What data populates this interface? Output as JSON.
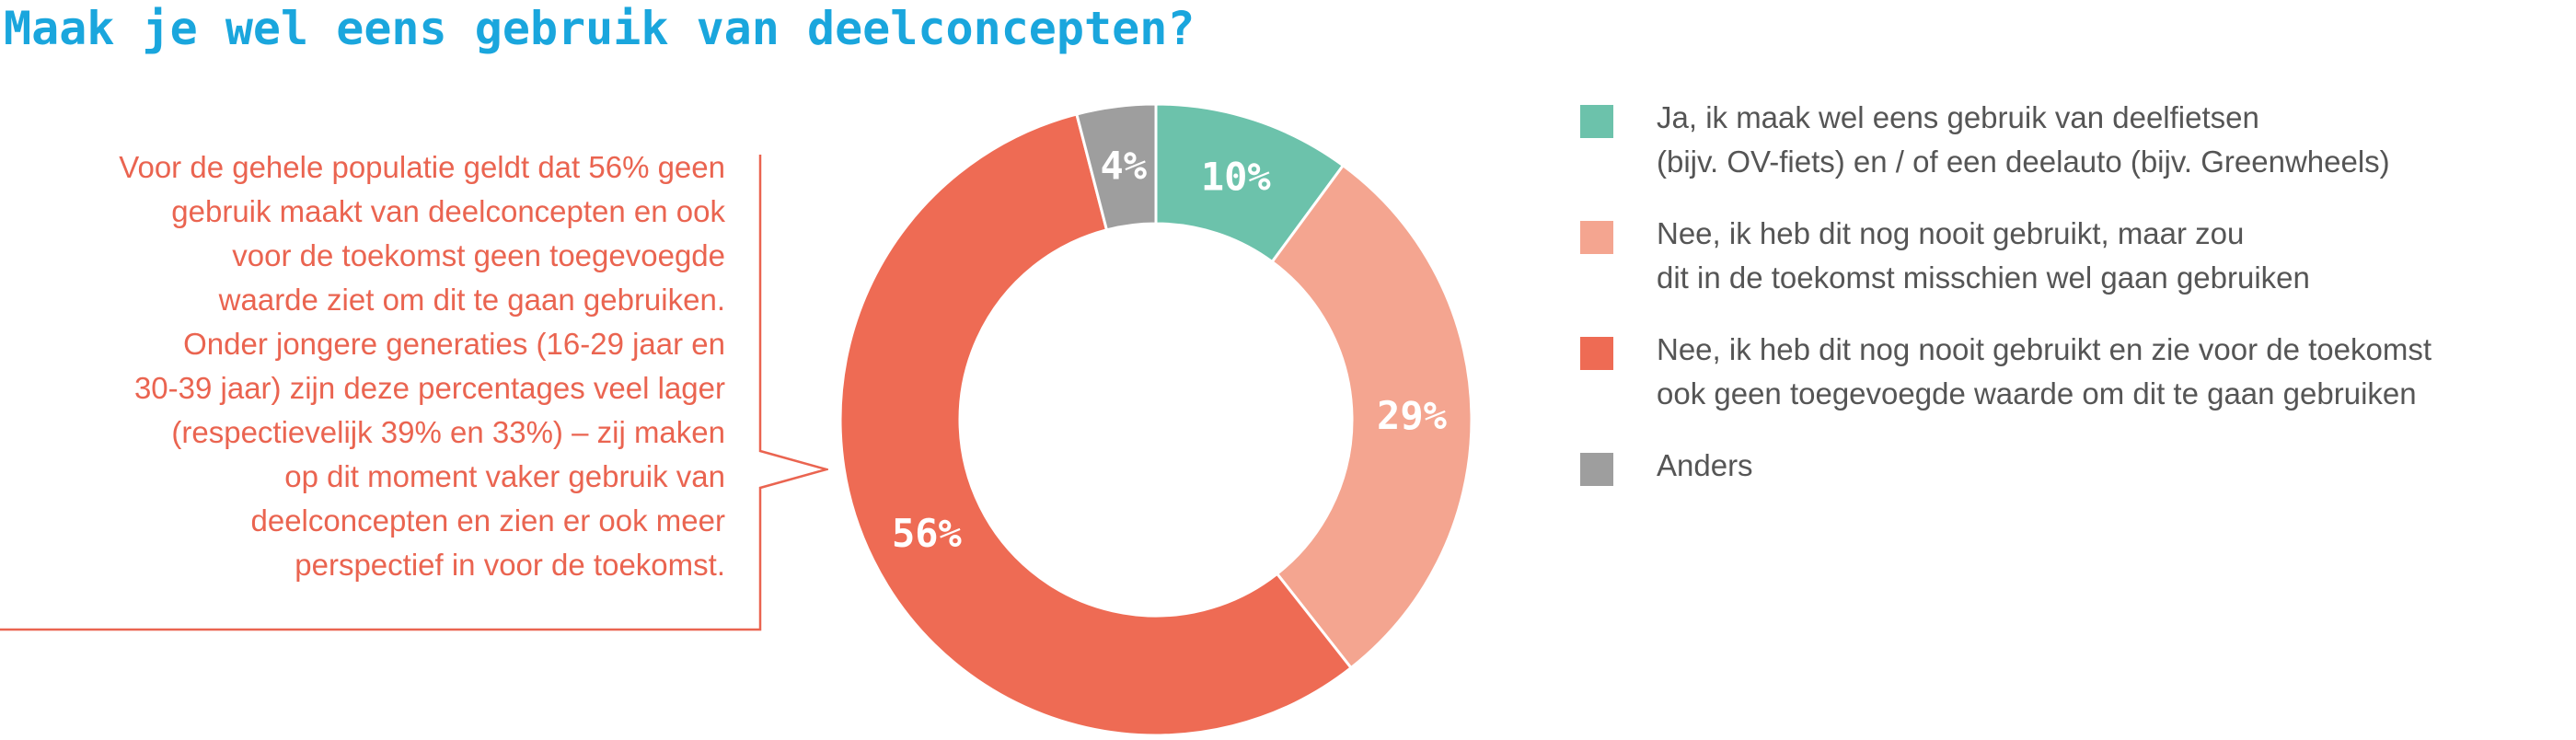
{
  "title": "Maak je wel eens gebruik van deelconcepten?",
  "callout": {
    "lines": [
      "Voor de gehele populatie geldt dat 56% geen",
      "gebruik maakt van deelconcepten en ook",
      "voor de toekomst geen toegevoegde",
      "waarde ziet om dit te gaan gebruiken.",
      "Onder jongere generaties (16-29 jaar en",
      "30-39 jaar) zijn deze  percentages veel lager",
      "(respectievelijk 39% en 33%) – zij maken",
      "op dit moment vaker gebruik van",
      "deelconcepten en zien er ook meer",
      "perspectief in voor de toekomst."
    ],
    "color": "#ea6450"
  },
  "chart_data": {
    "type": "pie",
    "donut": true,
    "title": "Maak je wel eens gebruik van deelconcepten?",
    "legend_position": "right",
    "slices": [
      {
        "label": "Ja, ik maak wel eens gebruik van deelfietsen (bijv. OV-fiets) en / of een deelauto (bijv. Greenwheels)",
        "value": 10,
        "display": "10%",
        "color": "#6cc2ab"
      },
      {
        "label": "Nee, ik heb dit nog nooit gebruikt, maar zou dit in de toekomst misschien wel gaan gebruiken",
        "value": 29,
        "display": "29%",
        "color": "#f4a590"
      },
      {
        "label": "Nee, ik heb dit nog nooit gebruikt en zie voor de toekomst ook geen toegevoegde waarde om dit te gaan gebruiken",
        "value": 56,
        "display": "56%",
        "color": "#ee6b54"
      },
      {
        "label": "Anders",
        "value": 4,
        "display": "4%",
        "color": "#9e9e9e"
      }
    ]
  },
  "legend": {
    "items": [
      {
        "lines": [
          "Ja, ik maak wel eens gebruik van deelfietsen",
          "(bijv. OV-fiets) en / of een deelauto (bijv. Greenwheels)"
        ],
        "color": "#6cc2ab"
      },
      {
        "lines": [
          "Nee, ik heb dit nog nooit gebruikt, maar zou",
          "dit in de toekomst misschien wel gaan gebruiken"
        ],
        "color": "#f4a590"
      },
      {
        "lines": [
          "Nee, ik heb dit nog nooit gebruikt en zie voor de toekomst",
          "ook geen toegevoegde waarde om dit te gaan gebruiken"
        ],
        "color": "#ee6b54"
      },
      {
        "lines": [
          "Anders"
        ],
        "color": "#9e9e9e"
      }
    ]
  }
}
